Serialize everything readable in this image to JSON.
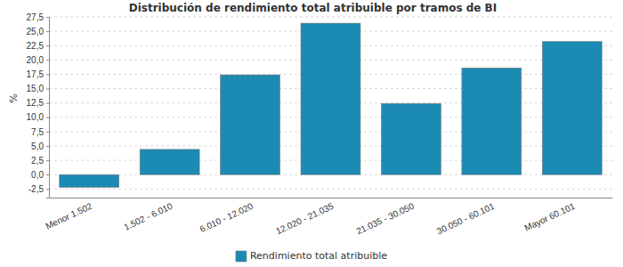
{
  "chart_data": {
    "type": "bar",
    "title": "Distribución de rendimiento total atribuible por tramos de BI",
    "y_label": "%",
    "categories": [
      "Menor 1.502",
      "1.502 - 6.010",
      "6.010 - 12.020",
      "12.020 - 21.035",
      "21.035 - 30.050",
      "30.050 - 60.101",
      "Mayor 60.101"
    ],
    "series": [
      {
        "name": "Rendimiento total atribuible",
        "color": "#1b8bb4",
        "values": [
          -2.2,
          4.4,
          17.4,
          26.4,
          12.4,
          18.6,
          23.2
        ]
      }
    ],
    "ylim": [
      -4,
      27.5
    ],
    "yticks": [
      {
        "value": -2.5,
        "label": "-2,5"
      },
      {
        "value": 0,
        "label": "0,0"
      },
      {
        "value": 2.5,
        "label": "2,5"
      },
      {
        "value": 5,
        "label": "5,0"
      },
      {
        "value": 7.5,
        "label": "7,5"
      },
      {
        "value": 10,
        "label": "10,0"
      },
      {
        "value": 12.5,
        "label": "12,5"
      },
      {
        "value": 15,
        "label": "15,0"
      },
      {
        "value": 17.5,
        "label": "17,5"
      },
      {
        "value": 20,
        "label": "20,0"
      },
      {
        "value": 22.5,
        "label": "22,5"
      },
      {
        "value": 25,
        "label": "25,0"
      },
      {
        "value": 27.5,
        "label": "27,5"
      }
    ],
    "grid": true,
    "legend": "bottom"
  }
}
